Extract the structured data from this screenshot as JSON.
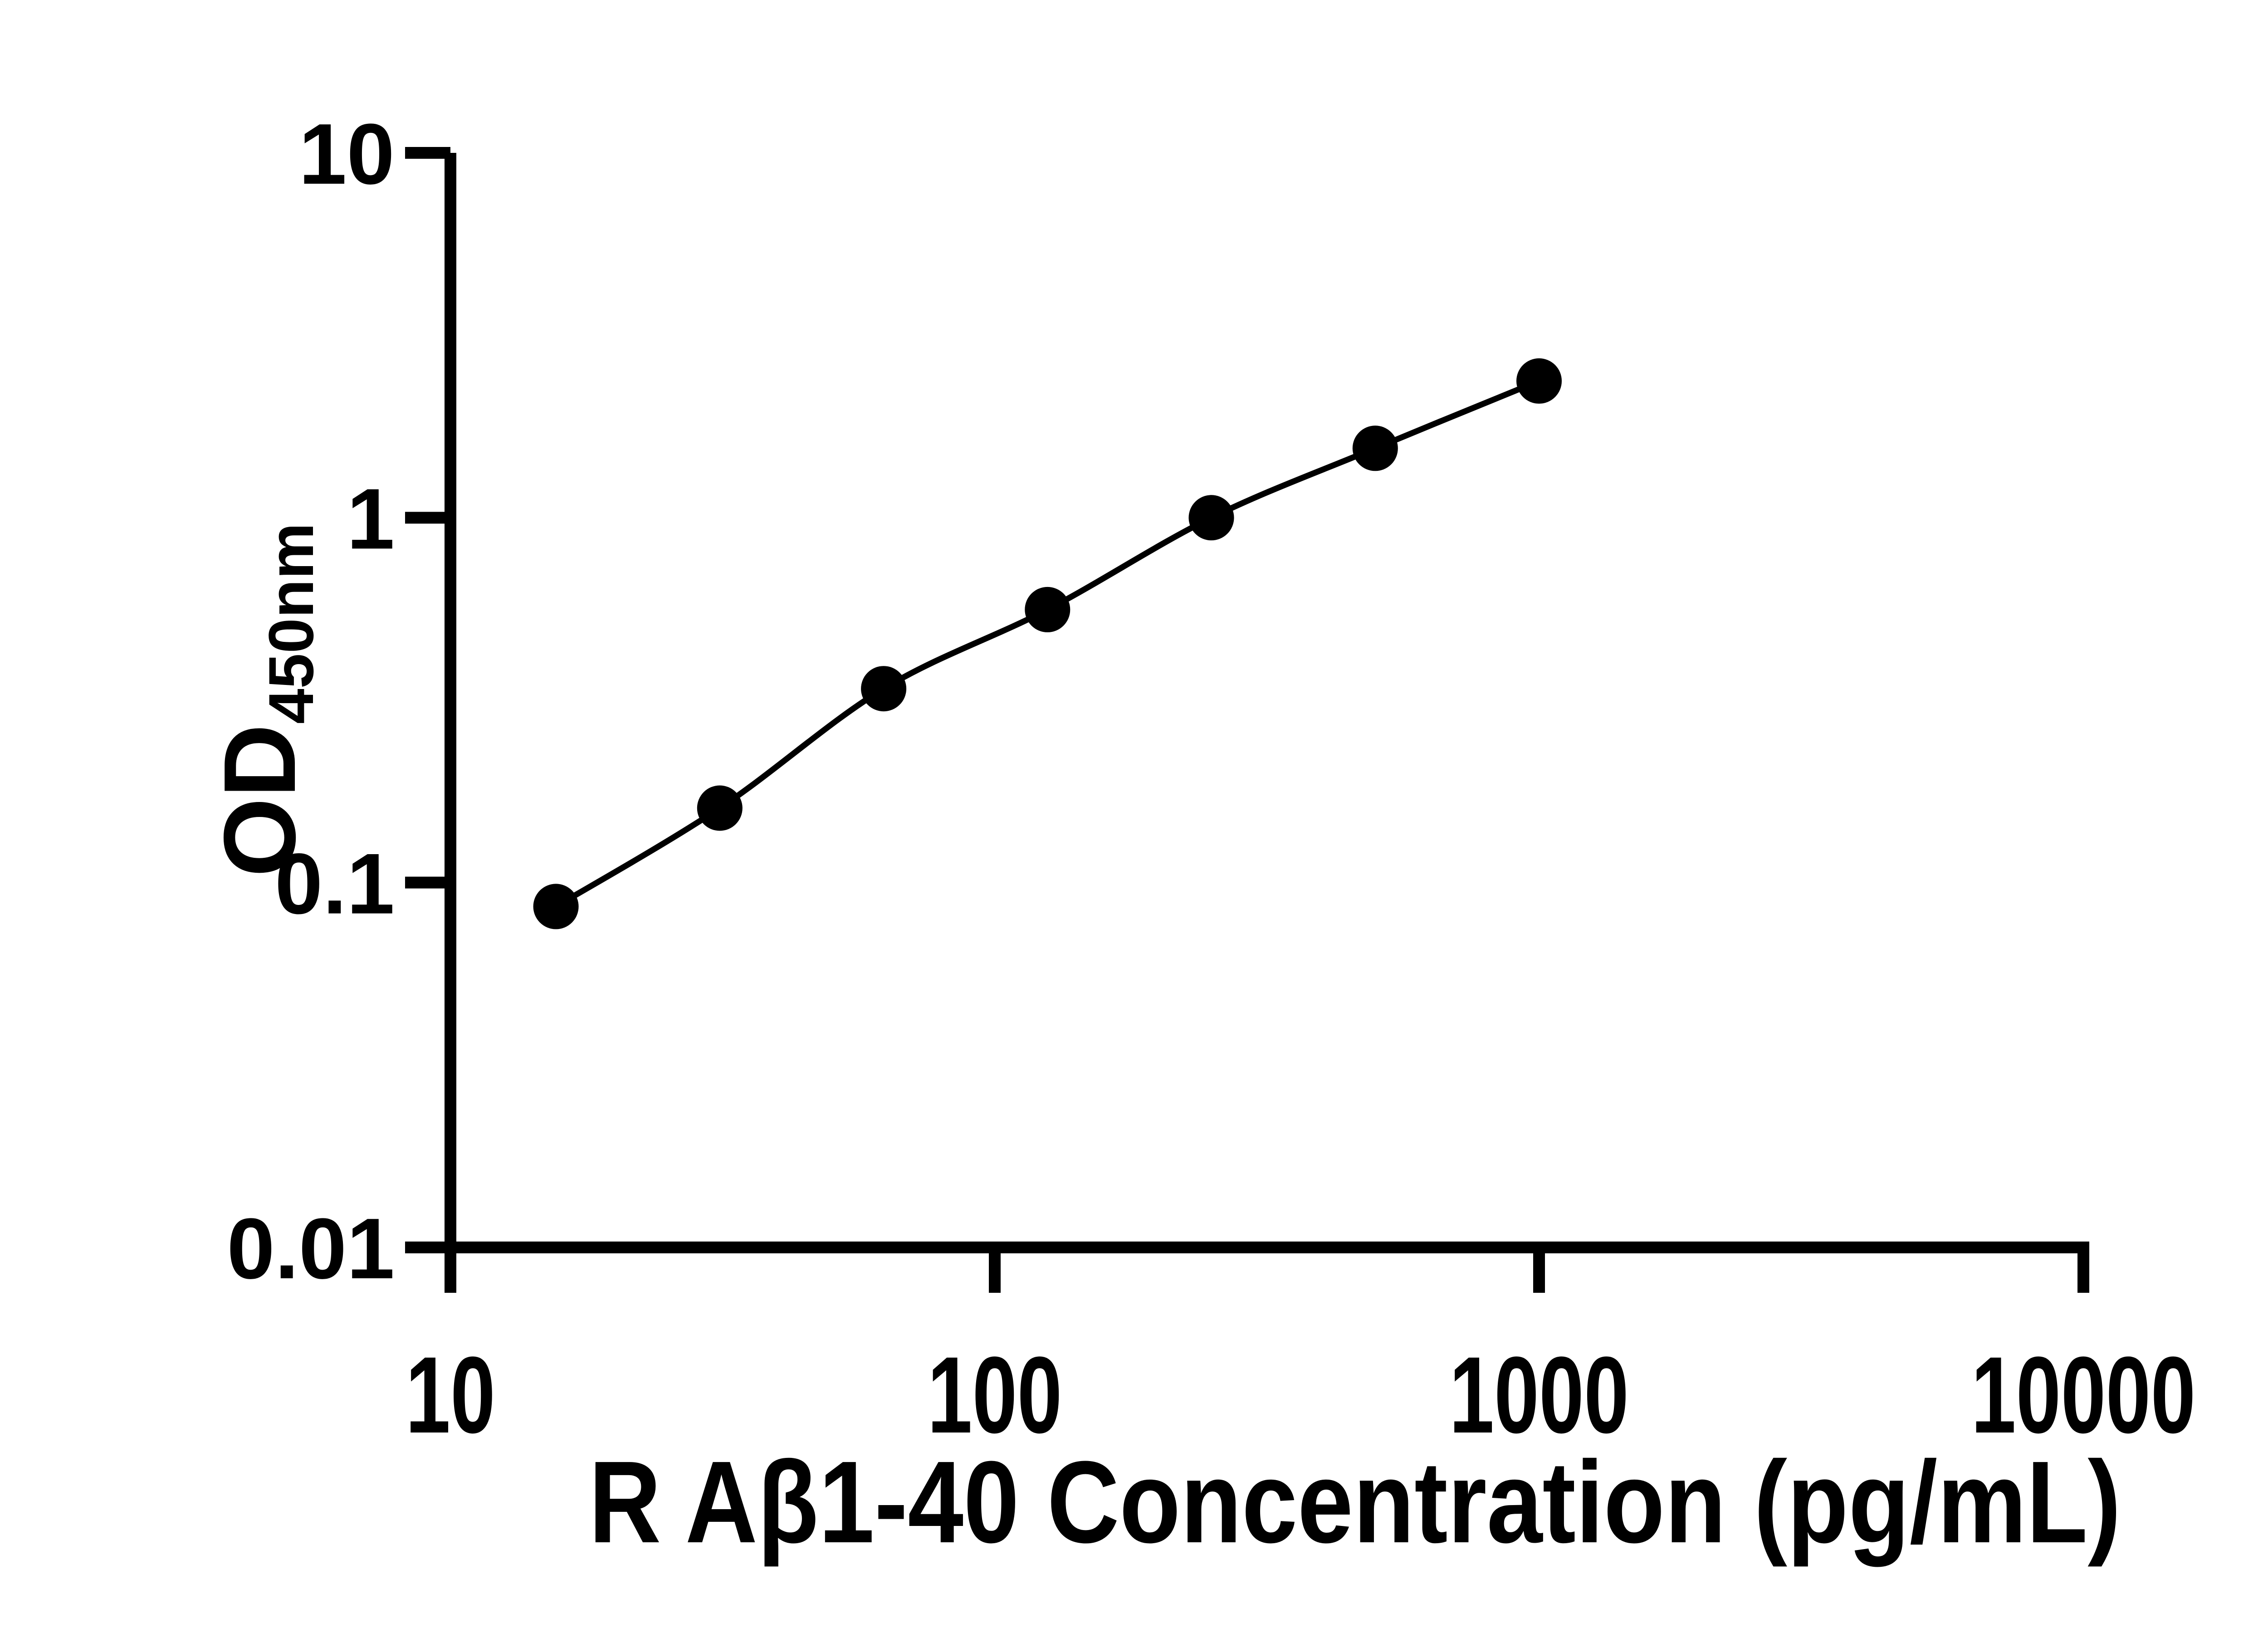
{
  "figure": {
    "background": "#ffffff",
    "ink_color": "#000000"
  },
  "chart_data": {
    "type": "scatter",
    "subtype": "log-log standard curve with smooth connecting line",
    "xlabel": "R Aβ1-40 Concentration (pg/mL)",
    "ylabel_main": "OD",
    "ylabel_subscript": "450nm",
    "x_scale": "log10",
    "y_scale": "log10",
    "xlim": [
      10,
      10000
    ],
    "ylim": [
      0.01,
      10
    ],
    "grid": false,
    "legend": "none",
    "x_ticks": [
      {
        "value": 10,
        "label": "10"
      },
      {
        "value": 100,
        "label": "100"
      },
      {
        "value": 1000,
        "label": "1000"
      },
      {
        "value": 10000,
        "label": "10000"
      }
    ],
    "y_ticks": [
      {
        "value": 10,
        "label": "10"
      },
      {
        "value": 1,
        "label": "1"
      },
      {
        "value": 0.1,
        "label": "0.1"
      },
      {
        "value": 0.01,
        "label": "0.01"
      }
    ],
    "series": [
      {
        "marker": "filled-circle",
        "color": "#000000",
        "line": "smooth",
        "points": [
          {
            "x": 15.625,
            "y": 0.086
          },
          {
            "x": 31.25,
            "y": 0.16
          },
          {
            "x": 62.5,
            "y": 0.34
          },
          {
            "x": 125,
            "y": 0.56
          },
          {
            "x": 250,
            "y": 1.0
          },
          {
            "x": 500,
            "y": 1.55
          },
          {
            "x": 1000,
            "y": 2.37
          }
        ]
      }
    ]
  }
}
